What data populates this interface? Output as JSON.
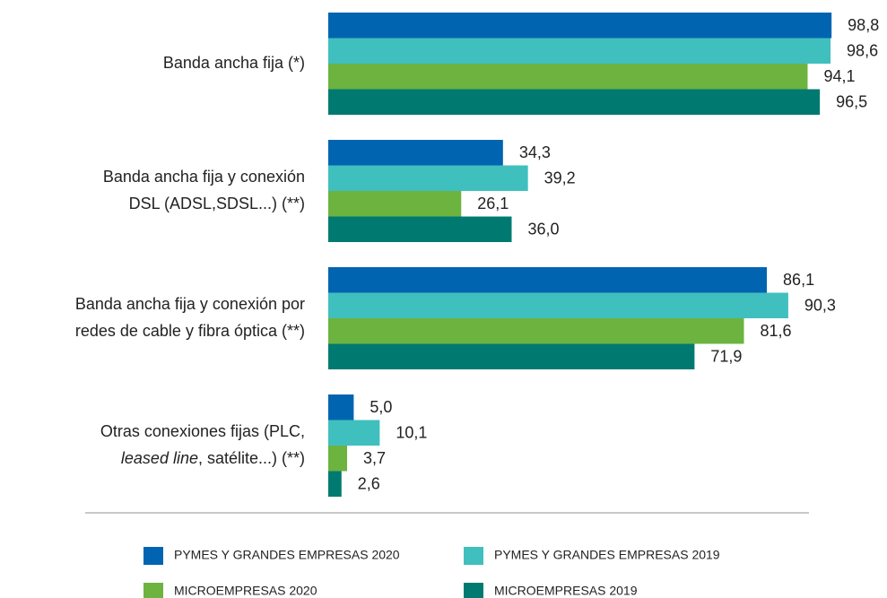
{
  "chart_data": {
    "type": "hbar",
    "categories": [
      [
        "Banda ancha fija (*)"
      ],
      [
        "Banda ancha fija y conexión",
        "DSL (ADSL,SDSL...) (**)"
      ],
      [
        "Banda ancha fija y conexión por",
        "redes de cable y fibra óptica (**)"
      ],
      [
        "Otras conexiones fijas (PLC,",
        [
          {
            "text": "leased line",
            "italic": true
          },
          {
            "text": ", satélite...) (**)"
          }
        ]
      ]
    ],
    "series": [
      {
        "name": "PYMES Y GRANDES EMPRESAS 2020",
        "color": "#0064b0",
        "values": [
          98.8,
          34.3,
          86.1,
          5.0
        ],
        "value_labels": [
          "98,8",
          "34,3",
          "86,1",
          "5,0"
        ]
      },
      {
        "name": "PYMES Y GRANDES EMPRESAS 2019",
        "color": "#40bfbf",
        "values": [
          98.6,
          39.2,
          90.3,
          10.1
        ],
        "value_labels": [
          "98,6",
          "39,2",
          "90,3",
          "10,1"
        ]
      },
      {
        "name": "MICROEMPRESAS 2020",
        "color": "#6cb33f",
        "values": [
          94.1,
          26.1,
          81.6,
          3.7
        ],
        "value_labels": [
          "94,1",
          "26,1",
          "81,6",
          "3,7"
        ]
      },
      {
        "name": "MICROEMPRESAS 2019",
        "color": "#007a70",
        "values": [
          96.5,
          36.0,
          71.9,
          2.6
        ],
        "value_labels": [
          "96,5",
          "36,0",
          "71,9",
          "2,6"
        ]
      }
    ],
    "xlim": [
      0,
      100
    ]
  }
}
